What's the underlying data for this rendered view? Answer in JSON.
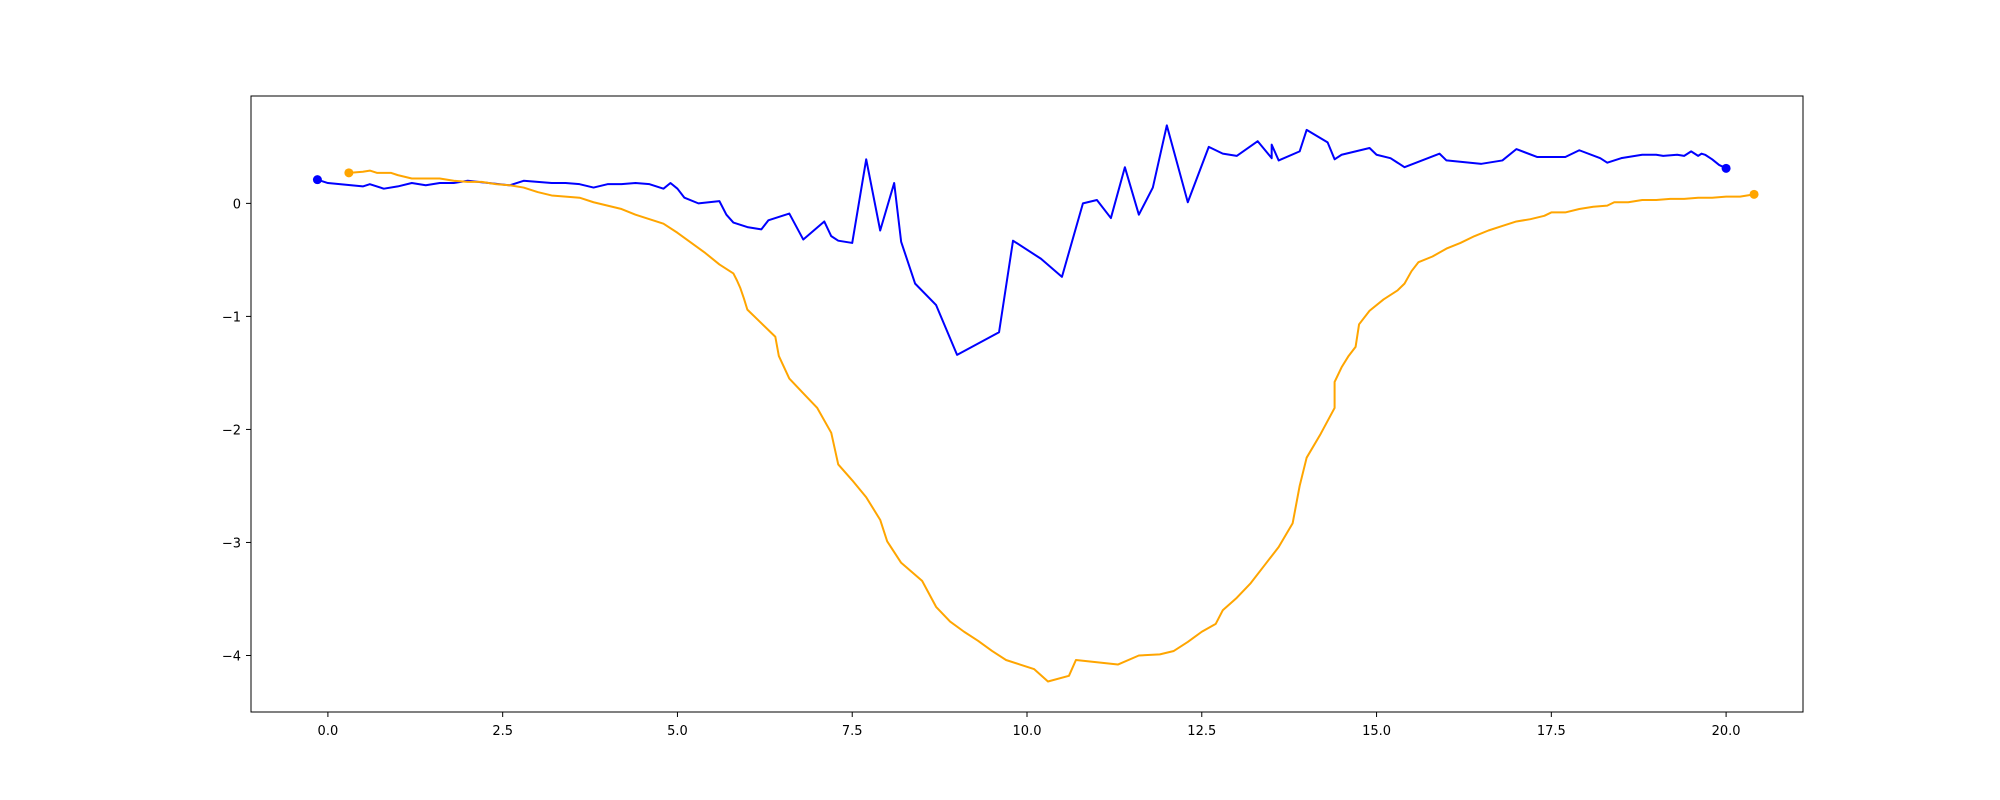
{
  "chart_data": {
    "type": "line",
    "title": "",
    "xlabel": "",
    "ylabel": "",
    "xlim": [
      -1.1,
      21.1
    ],
    "ylim": [
      -4.5,
      0.95
    ],
    "grid": false,
    "x_ticks": [
      0.0,
      2.5,
      5.0,
      7.5,
      10.0,
      12.5,
      15.0,
      17.5,
      20.0
    ],
    "x_tick_labels": [
      "0.0",
      "2.5",
      "5.0",
      "7.5",
      "10.0",
      "12.5",
      "15.0",
      "17.5",
      "20.0"
    ],
    "y_ticks": [
      0,
      -1,
      -2,
      -3,
      -4
    ],
    "y_tick_labels": [
      "0",
      "−1",
      "−2",
      "−3",
      "−4"
    ],
    "series": [
      {
        "color": "#0000ff",
        "marker": "end-dot",
        "points": [
          [
            -0.15,
            0.21
          ],
          [
            0.0,
            0.18
          ],
          [
            0.5,
            0.15
          ],
          [
            0.6,
            0.17
          ],
          [
            0.8,
            0.13
          ],
          [
            1.0,
            0.15
          ],
          [
            1.2,
            0.18
          ],
          [
            1.4,
            0.16
          ],
          [
            1.6,
            0.18
          ],
          [
            1.8,
            0.18
          ],
          [
            2.0,
            0.2
          ],
          [
            2.3,
            0.18
          ],
          [
            2.6,
            0.16
          ],
          [
            2.8,
            0.2
          ],
          [
            3.0,
            0.19
          ],
          [
            3.2,
            0.18
          ],
          [
            3.4,
            0.18
          ],
          [
            3.6,
            0.17
          ],
          [
            3.8,
            0.14
          ],
          [
            4.0,
            0.17
          ],
          [
            4.2,
            0.17
          ],
          [
            4.4,
            0.18
          ],
          [
            4.6,
            0.17
          ],
          [
            4.8,
            0.13
          ],
          [
            4.9,
            0.18
          ],
          [
            5.0,
            0.13
          ],
          [
            5.1,
            0.05
          ],
          [
            5.3,
            0.0
          ],
          [
            5.6,
            0.02
          ],
          [
            5.7,
            -0.1
          ],
          [
            5.8,
            -0.17
          ],
          [
            6.0,
            -0.21
          ],
          [
            6.2,
            -0.23
          ],
          [
            6.3,
            -0.15
          ],
          [
            6.6,
            -0.09
          ],
          [
            6.8,
            -0.32
          ],
          [
            7.1,
            -0.16
          ],
          [
            7.2,
            -0.29
          ],
          [
            7.3,
            -0.33
          ],
          [
            7.5,
            -0.35
          ],
          [
            7.7,
            0.39
          ],
          [
            7.9,
            -0.24
          ],
          [
            8.1,
            0.18
          ],
          [
            8.2,
            -0.34
          ],
          [
            8.4,
            -0.71
          ],
          [
            8.7,
            -0.9
          ],
          [
            9.0,
            -1.34
          ],
          [
            9.6,
            -1.14
          ],
          [
            9.8,
            -0.33
          ],
          [
            10.2,
            -0.49
          ],
          [
            10.5,
            -0.65
          ],
          [
            10.8,
            0.0
          ],
          [
            11.0,
            0.03
          ],
          [
            11.2,
            -0.13
          ],
          [
            11.4,
            0.32
          ],
          [
            11.6,
            -0.1
          ],
          [
            11.8,
            0.14
          ],
          [
            12.0,
            0.69
          ],
          [
            12.3,
            0.01
          ],
          [
            12.6,
            0.5
          ],
          [
            12.8,
            0.44
          ],
          [
            13.0,
            0.42
          ],
          [
            13.3,
            0.55
          ],
          [
            13.5,
            0.4
          ],
          [
            13.5,
            0.52
          ],
          [
            13.6,
            0.38
          ],
          [
            13.9,
            0.46
          ],
          [
            14.0,
            0.65
          ],
          [
            14.3,
            0.54
          ],
          [
            14.4,
            0.39
          ],
          [
            14.5,
            0.43
          ],
          [
            14.9,
            0.49
          ],
          [
            15.0,
            0.43
          ],
          [
            15.2,
            0.4
          ],
          [
            15.4,
            0.32
          ],
          [
            15.9,
            0.44
          ],
          [
            16.0,
            0.38
          ],
          [
            16.5,
            0.35
          ],
          [
            16.8,
            0.38
          ],
          [
            17.0,
            0.48
          ],
          [
            17.3,
            0.41
          ],
          [
            17.7,
            0.41
          ],
          [
            17.9,
            0.47
          ],
          [
            18.2,
            0.4
          ],
          [
            18.3,
            0.36
          ],
          [
            18.5,
            0.4
          ],
          [
            18.8,
            0.43
          ],
          [
            19.0,
            0.43
          ],
          [
            19.1,
            0.42
          ],
          [
            19.3,
            0.43
          ],
          [
            19.4,
            0.42
          ],
          [
            19.5,
            0.46
          ],
          [
            19.6,
            0.42
          ],
          [
            19.65,
            0.44
          ],
          [
            19.7,
            0.43
          ],
          [
            19.8,
            0.39
          ],
          [
            19.9,
            0.34
          ],
          [
            20.0,
            0.31
          ]
        ]
      },
      {
        "color": "#ffa500",
        "marker": "end-dot",
        "points": [
          [
            0.3,
            0.27
          ],
          [
            0.5,
            0.28
          ],
          [
            0.6,
            0.29
          ],
          [
            0.7,
            0.27
          ],
          [
            0.8,
            0.27
          ],
          [
            0.9,
            0.27
          ],
          [
            1.0,
            0.25
          ],
          [
            1.2,
            0.22
          ],
          [
            1.4,
            0.22
          ],
          [
            1.6,
            0.22
          ],
          [
            1.8,
            0.2
          ],
          [
            2.0,
            0.19
          ],
          [
            2.2,
            0.19
          ],
          [
            2.4,
            0.17
          ],
          [
            2.6,
            0.16
          ],
          [
            2.8,
            0.14
          ],
          [
            3.0,
            0.1
          ],
          [
            3.2,
            0.07
          ],
          [
            3.4,
            0.06
          ],
          [
            3.6,
            0.05
          ],
          [
            3.8,
            0.01
          ],
          [
            4.0,
            -0.02
          ],
          [
            4.2,
            -0.05
          ],
          [
            4.4,
            -0.1
          ],
          [
            4.6,
            -0.14
          ],
          [
            4.8,
            -0.18
          ],
          [
            5.0,
            -0.26
          ],
          [
            5.2,
            -0.35
          ],
          [
            5.4,
            -0.44
          ],
          [
            5.6,
            -0.54
          ],
          [
            5.8,
            -0.62
          ],
          [
            5.85,
            -0.68
          ],
          [
            5.9,
            -0.75
          ],
          [
            5.95,
            -0.84
          ],
          [
            6.0,
            -0.94
          ],
          [
            6.2,
            -1.06
          ],
          [
            6.4,
            -1.18
          ],
          [
            6.45,
            -1.35
          ],
          [
            6.6,
            -1.55
          ],
          [
            6.8,
            -1.68
          ],
          [
            7.0,
            -1.81
          ],
          [
            7.2,
            -2.03
          ],
          [
            7.3,
            -2.31
          ],
          [
            7.5,
            -2.45
          ],
          [
            7.7,
            -2.6
          ],
          [
            7.9,
            -2.8
          ],
          [
            8.0,
            -2.99
          ],
          [
            8.2,
            -3.18
          ],
          [
            8.5,
            -3.34
          ],
          [
            8.7,
            -3.57
          ],
          [
            8.9,
            -3.7
          ],
          [
            9.1,
            -3.79
          ],
          [
            9.3,
            -3.87
          ],
          [
            9.5,
            -3.96
          ],
          [
            9.7,
            -4.04
          ],
          [
            9.9,
            -4.08
          ],
          [
            10.1,
            -4.12
          ],
          [
            10.3,
            -4.23
          ],
          [
            10.6,
            -4.18
          ],
          [
            10.7,
            -4.04
          ],
          [
            11.0,
            -4.06
          ],
          [
            11.3,
            -4.08
          ],
          [
            11.6,
            -4.0
          ],
          [
            11.9,
            -3.99
          ],
          [
            12.1,
            -3.96
          ],
          [
            12.3,
            -3.88
          ],
          [
            12.5,
            -3.79
          ],
          [
            12.7,
            -3.72
          ],
          [
            12.8,
            -3.6
          ],
          [
            13.0,
            -3.49
          ],
          [
            13.2,
            -3.36
          ],
          [
            13.4,
            -3.2
          ],
          [
            13.6,
            -3.04
          ],
          [
            13.8,
            -2.83
          ],
          [
            13.9,
            -2.5
          ],
          [
            14.0,
            -2.25
          ],
          [
            14.2,
            -2.04
          ],
          [
            14.4,
            -1.81
          ],
          [
            14.4,
            -1.58
          ],
          [
            14.5,
            -1.45
          ],
          [
            14.6,
            -1.35
          ],
          [
            14.7,
            -1.27
          ],
          [
            14.75,
            -1.07
          ],
          [
            14.9,
            -0.95
          ],
          [
            15.1,
            -0.85
          ],
          [
            15.3,
            -0.77
          ],
          [
            15.4,
            -0.71
          ],
          [
            15.5,
            -0.6
          ],
          [
            15.6,
            -0.52
          ],
          [
            15.8,
            -0.47
          ],
          [
            16.0,
            -0.4
          ],
          [
            16.2,
            -0.35
          ],
          [
            16.4,
            -0.29
          ],
          [
            16.6,
            -0.24
          ],
          [
            16.8,
            -0.2
          ],
          [
            17.0,
            -0.16
          ],
          [
            17.2,
            -0.14
          ],
          [
            17.4,
            -0.11
          ],
          [
            17.5,
            -0.08
          ],
          [
            17.7,
            -0.08
          ],
          [
            17.9,
            -0.05
          ],
          [
            18.1,
            -0.03
          ],
          [
            18.3,
            -0.02
          ],
          [
            18.4,
            0.01
          ],
          [
            18.6,
            0.01
          ],
          [
            18.8,
            0.03
          ],
          [
            19.0,
            0.03
          ],
          [
            19.2,
            0.04
          ],
          [
            19.4,
            0.04
          ],
          [
            19.6,
            0.05
          ],
          [
            19.8,
            0.05
          ],
          [
            20.0,
            0.06
          ],
          [
            20.2,
            0.06
          ],
          [
            20.4,
            0.08
          ]
        ]
      }
    ]
  }
}
